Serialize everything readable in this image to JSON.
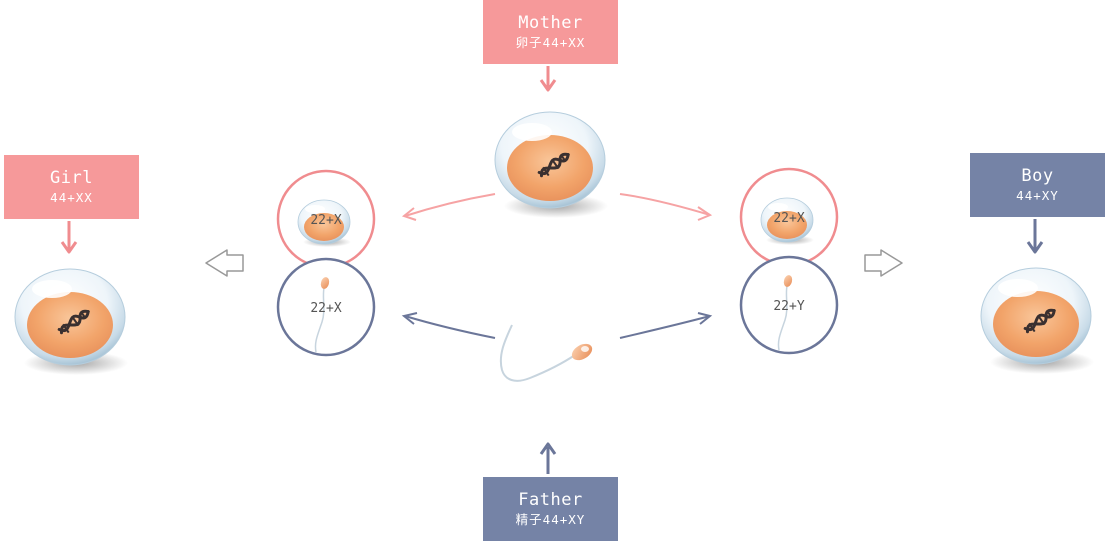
{
  "mother": {
    "title": "Mother",
    "subtitle": "卵子44+XX"
  },
  "father": {
    "title": "Father",
    "subtitle": "精子44+XY"
  },
  "girl": {
    "title": "Girl",
    "subtitle": "44+XX"
  },
  "boy": {
    "title": "Boy",
    "subtitle": "44+XY"
  },
  "gametes": {
    "egg_left": "22+X",
    "sperm_left": "22+X",
    "egg_right": "22+X",
    "sperm_right": "22+Y"
  },
  "colors": {
    "pink": "#f6999a",
    "blue": "#7583a6",
    "pink_circle": "#f08c8f",
    "blue_circle": "#6b7699",
    "yolk": "#f2a46a"
  },
  "icons": [
    "egg-cell-icon",
    "sperm-cell-icon",
    "dna-icon",
    "hollow-arrow-icon"
  ]
}
